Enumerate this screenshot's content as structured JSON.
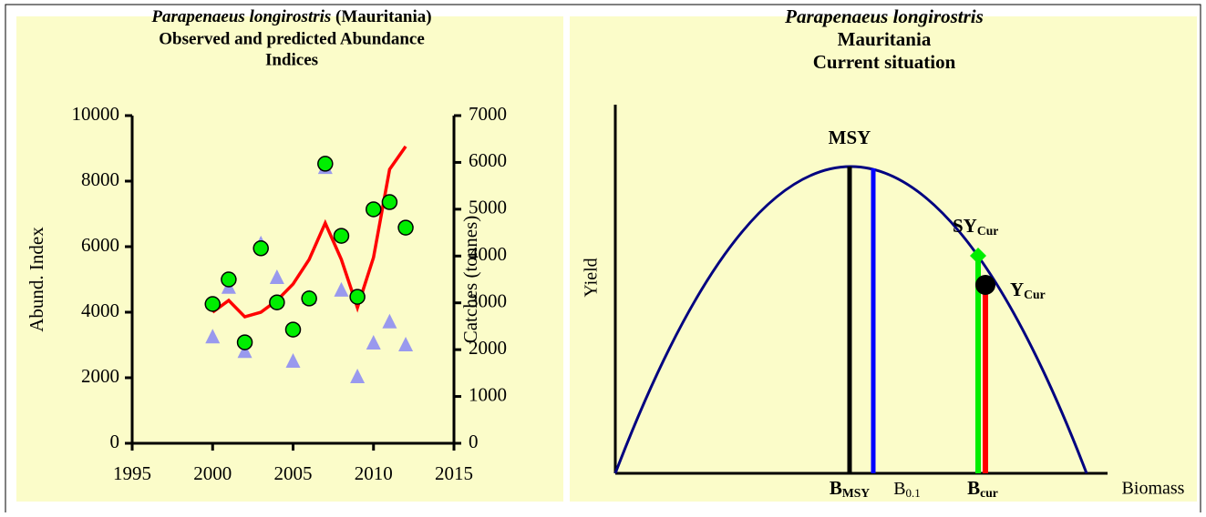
{
  "chart_data": [
    {
      "type": "scatter-line",
      "title_italic": "Parapenaeus longirostris",
      "title_rest": "(Mauritania)",
      "title_lines": [
        "Observed and predicted Abundance",
        "Indices"
      ],
      "ylabel": "Abund. Index",
      "y2label": "Catches (tonnes)",
      "x": [
        2000,
        2001,
        2002,
        2003,
        2004,
        2005,
        2006,
        2007,
        2008,
        2009,
        2010,
        2011,
        2012
      ],
      "xlim": [
        1995,
        2015
      ],
      "xticks": [
        1995,
        2000,
        2005,
        2010,
        2015
      ],
      "ylim": [
        0,
        10000
      ],
      "yticks": [
        0,
        2000,
        4000,
        6000,
        8000,
        10000
      ],
      "y2lim": [
        0,
        7000
      ],
      "y2ticks": [
        0,
        1000,
        2000,
        3000,
        4000,
        5000,
        6000,
        7000
      ],
      "series": [
        {
          "marker": "triangle",
          "color": "#9999ee",
          "axis": "y2",
          "values": [
            2270,
            3330,
            1960,
            4260,
            3540,
            1750,
            3110,
            5890,
            3270,
            1420,
            2140,
            2590,
            2100
          ]
        },
        {
          "marker": "line",
          "color": "#ff0000",
          "values": [
            4000,
            4360,
            3860,
            4000,
            4360,
            4860,
            5610,
            6720,
            5610,
            4140,
            5670,
            8360,
            9060
          ]
        },
        {
          "marker": "circle",
          "color": "#00ee00",
          "values": [
            4250,
            5000,
            3080,
            5950,
            4300,
            3470,
            4420,
            8530,
            6330,
            4470,
            7140,
            7360,
            6580
          ]
        }
      ]
    },
    {
      "type": "yield-curve",
      "title_lines": [
        "Parapenaeus longirostris",
        "Mauritania",
        "Current situation"
      ],
      "ylabel": "Yield",
      "xlabel": "Biomass",
      "labels": {
        "msy": "MSY",
        "sy": {
          "main": "SY",
          "sub": "Cur"
        },
        "y": {
          "main": "Y",
          "sub": "Cur"
        },
        "bmsy": {
          "main": "B",
          "sub": "MSY"
        },
        "b01": {
          "main": "B",
          "sub": "0.1"
        },
        "bcur": {
          "main": "B",
          "sub": "cur"
        }
      }
    }
  ]
}
